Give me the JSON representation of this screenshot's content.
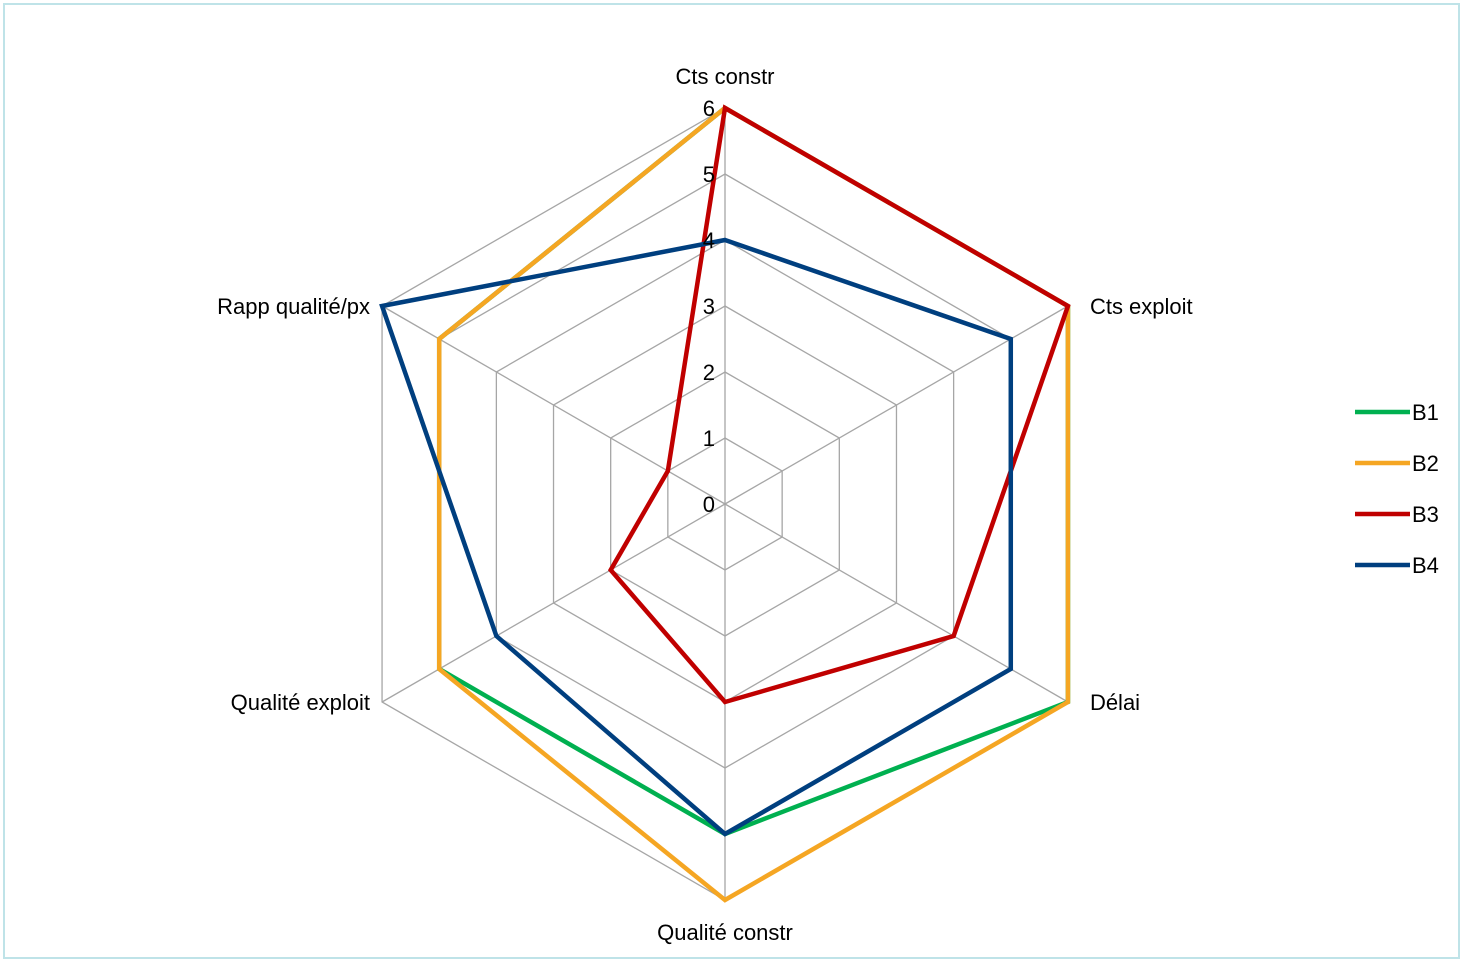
{
  "chart_data": {
    "type": "radar",
    "axes": [
      "Cts constr",
      "Cts exploit",
      "Délai",
      "Qualité constr",
      "Qualité exploit",
      "Rapp qualité/px"
    ],
    "rlim": [
      0,
      6
    ],
    "ticks": [
      "0",
      "1",
      "2",
      "3",
      "4",
      "5",
      "6"
    ],
    "grid": true,
    "legend": "right",
    "series": [
      {
        "name": "B1",
        "color": "#00b050",
        "values": [
          6,
          6,
          6,
          5,
          5,
          5
        ]
      },
      {
        "name": "B2",
        "color": "#f5a623",
        "values": [
          6,
          6,
          6,
          6,
          5,
          5
        ]
      },
      {
        "name": "B3",
        "color": "#c00000",
        "values": [
          6,
          6,
          4,
          3,
          2,
          1
        ]
      },
      {
        "name": "B4",
        "color": "#003f7f",
        "values": [
          4,
          5,
          5,
          5,
          4,
          6
        ]
      }
    ]
  }
}
